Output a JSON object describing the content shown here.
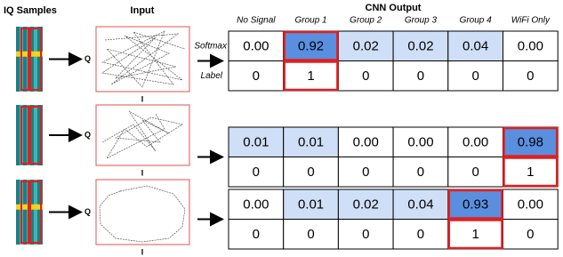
{
  "headers": {
    "iq": "IQ Samples",
    "input": "Input",
    "output": "CNN Output"
  },
  "columns": [
    "No Signal",
    "Group 1",
    "Group 2",
    "Group 3",
    "Group 4",
    "WiFi Only"
  ],
  "row_labels": {
    "softmax": "Softmax",
    "label": "Label"
  },
  "axes": {
    "q": "Q",
    "i": "I"
  },
  "samples": [
    {
      "softmax": [
        "0.00",
        "0.92",
        "0.02",
        "0.02",
        "0.04",
        "0.00"
      ],
      "label": [
        "0",
        "1",
        "0",
        "0",
        "0",
        "0"
      ]
    },
    {
      "softmax": [
        "0.01",
        "0.01",
        "0.00",
        "0.00",
        "0.00",
        "0.98"
      ],
      "label": [
        "0",
        "0",
        "0",
        "0",
        "0",
        "1"
      ]
    },
    {
      "softmax": [
        "0.00",
        "0.01",
        "0.02",
        "0.04",
        "0.93",
        "0.00"
      ],
      "label": [
        "0",
        "0",
        "0",
        "0",
        "1",
        "0"
      ]
    }
  ]
}
